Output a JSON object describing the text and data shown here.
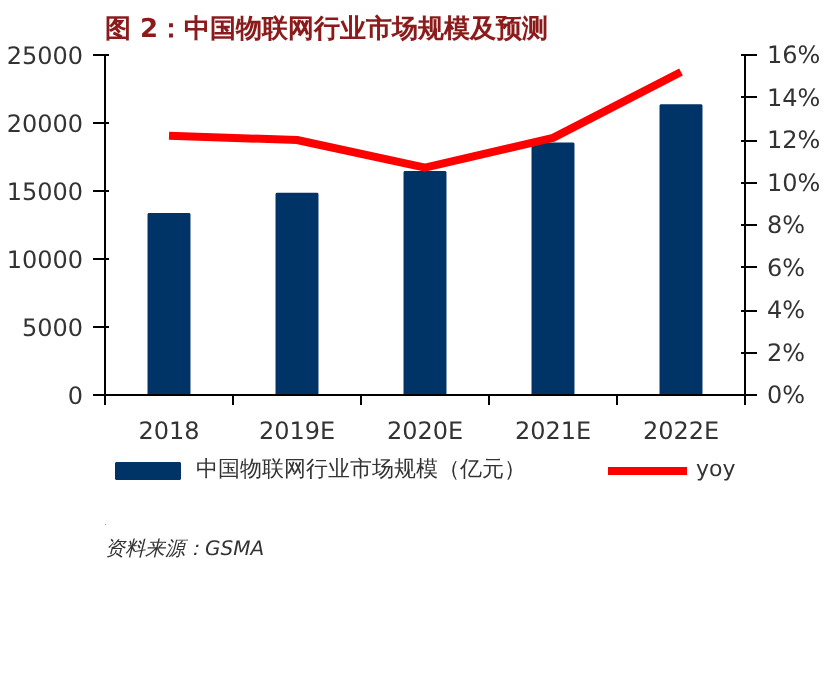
{
  "chart_data": {
    "type": "bar",
    "title": "图 2：中国物联网行业市场规模及预测",
    "categories": [
      "2018",
      "2019E",
      "2020E",
      "2021E",
      "2022E"
    ],
    "series": [
      {
        "name": "中国物联网行业市场规模（亿元）",
        "color": "#003366",
        "values": [
          13300,
          14800,
          16400,
          18500,
          21300
        ]
      },
      {
        "name": "yoy",
        "type": "line",
        "axis": "y2",
        "color": "#ff0000",
        "values": [
          12.2,
          12.0,
          10.7,
          12.1,
          15.2
        ]
      }
    ],
    "ylim": [
      0,
      25000
    ],
    "yticks": [
      0,
      5000,
      10000,
      15000,
      20000,
      25000
    ],
    "y2lim": [
      0,
      16
    ],
    "y2ticks": [
      {
        "value": 0,
        "label": "0%"
      },
      {
        "value": 2,
        "label": "2%"
      },
      {
        "value": 4,
        "label": "4%"
      },
      {
        "value": 6,
        "label": "6%"
      },
      {
        "value": 8,
        "label": "8%"
      },
      {
        "value": 10,
        "label": "10%"
      },
      {
        "value": 12,
        "label": "12%"
      },
      {
        "value": 14,
        "label": "14%"
      },
      {
        "value": 16,
        "label": "16%"
      }
    ],
    "grid": false,
    "legend": "bottom",
    "annotations": [
      "资料来源：GSMA"
    ]
  }
}
